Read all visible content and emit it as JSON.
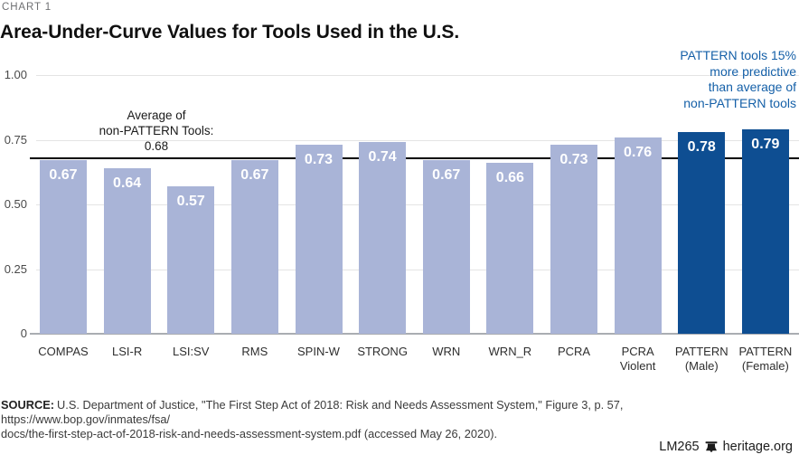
{
  "page": {
    "chart_label": "CHART 1",
    "title": "Area-Under-Curve Values for Tools Used in the U.S.",
    "source": {
      "label": "SOURCE:",
      "line1": "U.S. Department of Justice, \"The First Step Act of 2018: Risk and Needs Assessment System,\" Figure 3, p. 57, https://www.bop.gov/inmates/fsa/",
      "line2": "docs/the-first-step-act-of-2018-risk-and-needs-assessment-system.pdf (accessed May 26, 2020)."
    },
    "footer": {
      "id": "LM265",
      "site": "heritage.org"
    }
  },
  "annotations": {
    "average": {
      "lines": [
        "Average of",
        "non-PATTERN Tools:",
        "0.68"
      ]
    },
    "pattern": {
      "lines": [
        "PATTERN tools 15%",
        "more predictive",
        "than average of",
        "non-PATTERN tools"
      ],
      "color": "#1560a8"
    }
  },
  "chart_data": {
    "type": "bar",
    "title": "Area-Under-Curve Values for Tools Used in the U.S.",
    "categories": [
      "COMPAS",
      "LSI-R",
      "LSI:SV",
      "RMS",
      "SPIN-W",
      "STRONG",
      "WRN",
      "WRN_R",
      "PCRA",
      "PCRA Violent",
      "PATTERN (Male)",
      "PATTERN (Female)"
    ],
    "category_lines": [
      [
        "COMPAS"
      ],
      [
        "LSI-R"
      ],
      [
        "LSI:SV"
      ],
      [
        "RMS"
      ],
      [
        "SPIN-W"
      ],
      [
        "STRONG"
      ],
      [
        "WRN"
      ],
      [
        "WRN_R"
      ],
      [
        "PCRA"
      ],
      [
        "PCRA",
        "Violent"
      ],
      [
        "PATTERN",
        "(Male)"
      ],
      [
        "PATTERN",
        "(Female)"
      ]
    ],
    "values": [
      0.67,
      0.64,
      0.57,
      0.67,
      0.73,
      0.74,
      0.67,
      0.66,
      0.73,
      0.76,
      0.78,
      0.79
    ],
    "highlight": [
      false,
      false,
      false,
      false,
      false,
      false,
      false,
      false,
      false,
      false,
      true,
      true
    ],
    "xlabel": "",
    "ylabel": "",
    "ylim": [
      0,
      1.0
    ],
    "yticks": [
      1.0,
      0.75,
      0.5,
      0.25,
      0
    ],
    "ytick_labels": [
      "1.00",
      "0.75",
      "0.50",
      "0.25",
      "0"
    ],
    "reference_line": {
      "value": 0.68,
      "label": "Average of non-PATTERN Tools: 0.68"
    },
    "grid": "horizontal",
    "legend": null,
    "colors": {
      "bar": "#a9b4d7",
      "bar_highlight": "#0e4e92",
      "reference_line": "#000000",
      "gridline": "#e4e4e4",
      "baseline": "#aaadb2",
      "annotation_blue": "#1560a8"
    }
  }
}
